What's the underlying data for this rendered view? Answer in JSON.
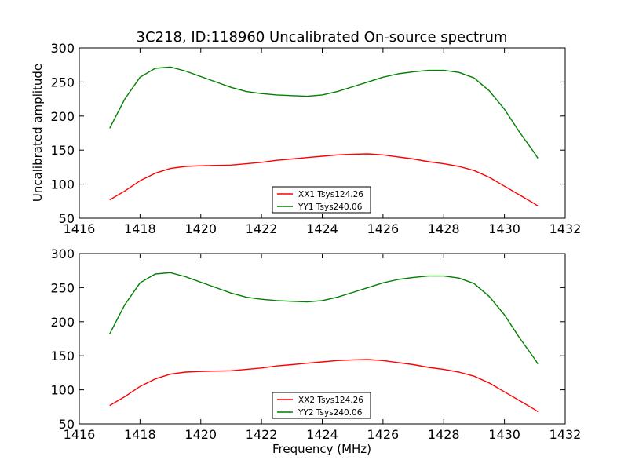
{
  "chart_data": [
    {
      "type": "line",
      "title": "3C218, ID:118960 Uncalibrated On-source spectrum",
      "xlabel": "",
      "ylabel": "Uncalibrated amplitude",
      "xlim": [
        1416,
        1432
      ],
      "ylim": [
        50,
        300
      ],
      "xticks": [
        1416,
        1418,
        1420,
        1422,
        1424,
        1426,
        1428,
        1430,
        1432
      ],
      "yticks": [
        50,
        100,
        150,
        200,
        250,
        300
      ],
      "legend_position": "bottom-center",
      "series": [
        {
          "name": "XX1 Tsys124.26",
          "color": "#ff0000",
          "x": [
            1417.0,
            1417.5,
            1418.0,
            1418.5,
            1419.0,
            1419.5,
            1420.0,
            1420.5,
            1421.0,
            1421.5,
            1422.0,
            1422.5,
            1423.0,
            1423.5,
            1424.0,
            1424.5,
            1425.0,
            1425.5,
            1426.0,
            1426.5,
            1427.0,
            1427.5,
            1428.0,
            1428.5,
            1429.0,
            1429.5,
            1430.0,
            1430.5,
            1431.0,
            1431.1
          ],
          "y": [
            77,
            90,
            105,
            116,
            123,
            126,
            127,
            127.5,
            128,
            130,
            132,
            135,
            137,
            139,
            141,
            143,
            144,
            144.5,
            143,
            140,
            137,
            133,
            130,
            126,
            120,
            110,
            97,
            84,
            71,
            68
          ]
        },
        {
          "name": "YY1 Tsys240.06",
          "color": "#008000",
          "x": [
            1417.0,
            1417.5,
            1418.0,
            1418.5,
            1419.0,
            1419.5,
            1420.0,
            1420.5,
            1421.0,
            1421.5,
            1422.0,
            1422.5,
            1423.0,
            1423.5,
            1424.0,
            1424.5,
            1425.0,
            1425.5,
            1426.0,
            1426.5,
            1427.0,
            1427.5,
            1428.0,
            1428.5,
            1429.0,
            1429.5,
            1430.0,
            1430.5,
            1431.0,
            1431.1
          ],
          "y": [
            182,
            225,
            257,
            270,
            272,
            266,
            258,
            250,
            242,
            236,
            233,
            231,
            230,
            229,
            231,
            236,
            243,
            250,
            257,
            262,
            265,
            267,
            267,
            264,
            256,
            237,
            210,
            176,
            145,
            138
          ]
        }
      ]
    },
    {
      "type": "line",
      "title": "",
      "xlabel": "Frequency (MHz)",
      "ylabel": "",
      "xlim": [
        1416,
        1432
      ],
      "ylim": [
        50,
        300
      ],
      "xticks": [
        1416,
        1418,
        1420,
        1422,
        1424,
        1426,
        1428,
        1430,
        1432
      ],
      "yticks": [
        50,
        100,
        150,
        200,
        250,
        300
      ],
      "legend_position": "bottom-center",
      "series": [
        {
          "name": "XX2 Tsys124.26",
          "color": "#ff0000",
          "x": [
            1417.0,
            1417.5,
            1418.0,
            1418.5,
            1419.0,
            1419.5,
            1420.0,
            1420.5,
            1421.0,
            1421.5,
            1422.0,
            1422.5,
            1423.0,
            1423.5,
            1424.0,
            1424.5,
            1425.0,
            1425.5,
            1426.0,
            1426.5,
            1427.0,
            1427.5,
            1428.0,
            1428.5,
            1429.0,
            1429.5,
            1430.0,
            1430.5,
            1431.0,
            1431.1
          ],
          "y": [
            77,
            90,
            105,
            116,
            123,
            126,
            127,
            127.5,
            128,
            130,
            132,
            135,
            137,
            139,
            141,
            143,
            144,
            144.5,
            143,
            140,
            137,
            133,
            130,
            126,
            120,
            110,
            97,
            84,
            71,
            68
          ]
        },
        {
          "name": "YY2 Tsys240.06",
          "color": "#008000",
          "x": [
            1417.0,
            1417.5,
            1418.0,
            1418.5,
            1419.0,
            1419.5,
            1420.0,
            1420.5,
            1421.0,
            1421.5,
            1422.0,
            1422.5,
            1423.0,
            1423.5,
            1424.0,
            1424.5,
            1425.0,
            1425.5,
            1426.0,
            1426.5,
            1427.0,
            1427.5,
            1428.0,
            1428.5,
            1429.0,
            1429.5,
            1430.0,
            1430.5,
            1431.0,
            1431.1
          ],
          "y": [
            182,
            225,
            257,
            270,
            272,
            266,
            258,
            250,
            242,
            236,
            233,
            231,
            230,
            229,
            231,
            236,
            243,
            250,
            257,
            262,
            265,
            267,
            267,
            264,
            256,
            237,
            210,
            176,
            145,
            138
          ]
        }
      ]
    }
  ]
}
